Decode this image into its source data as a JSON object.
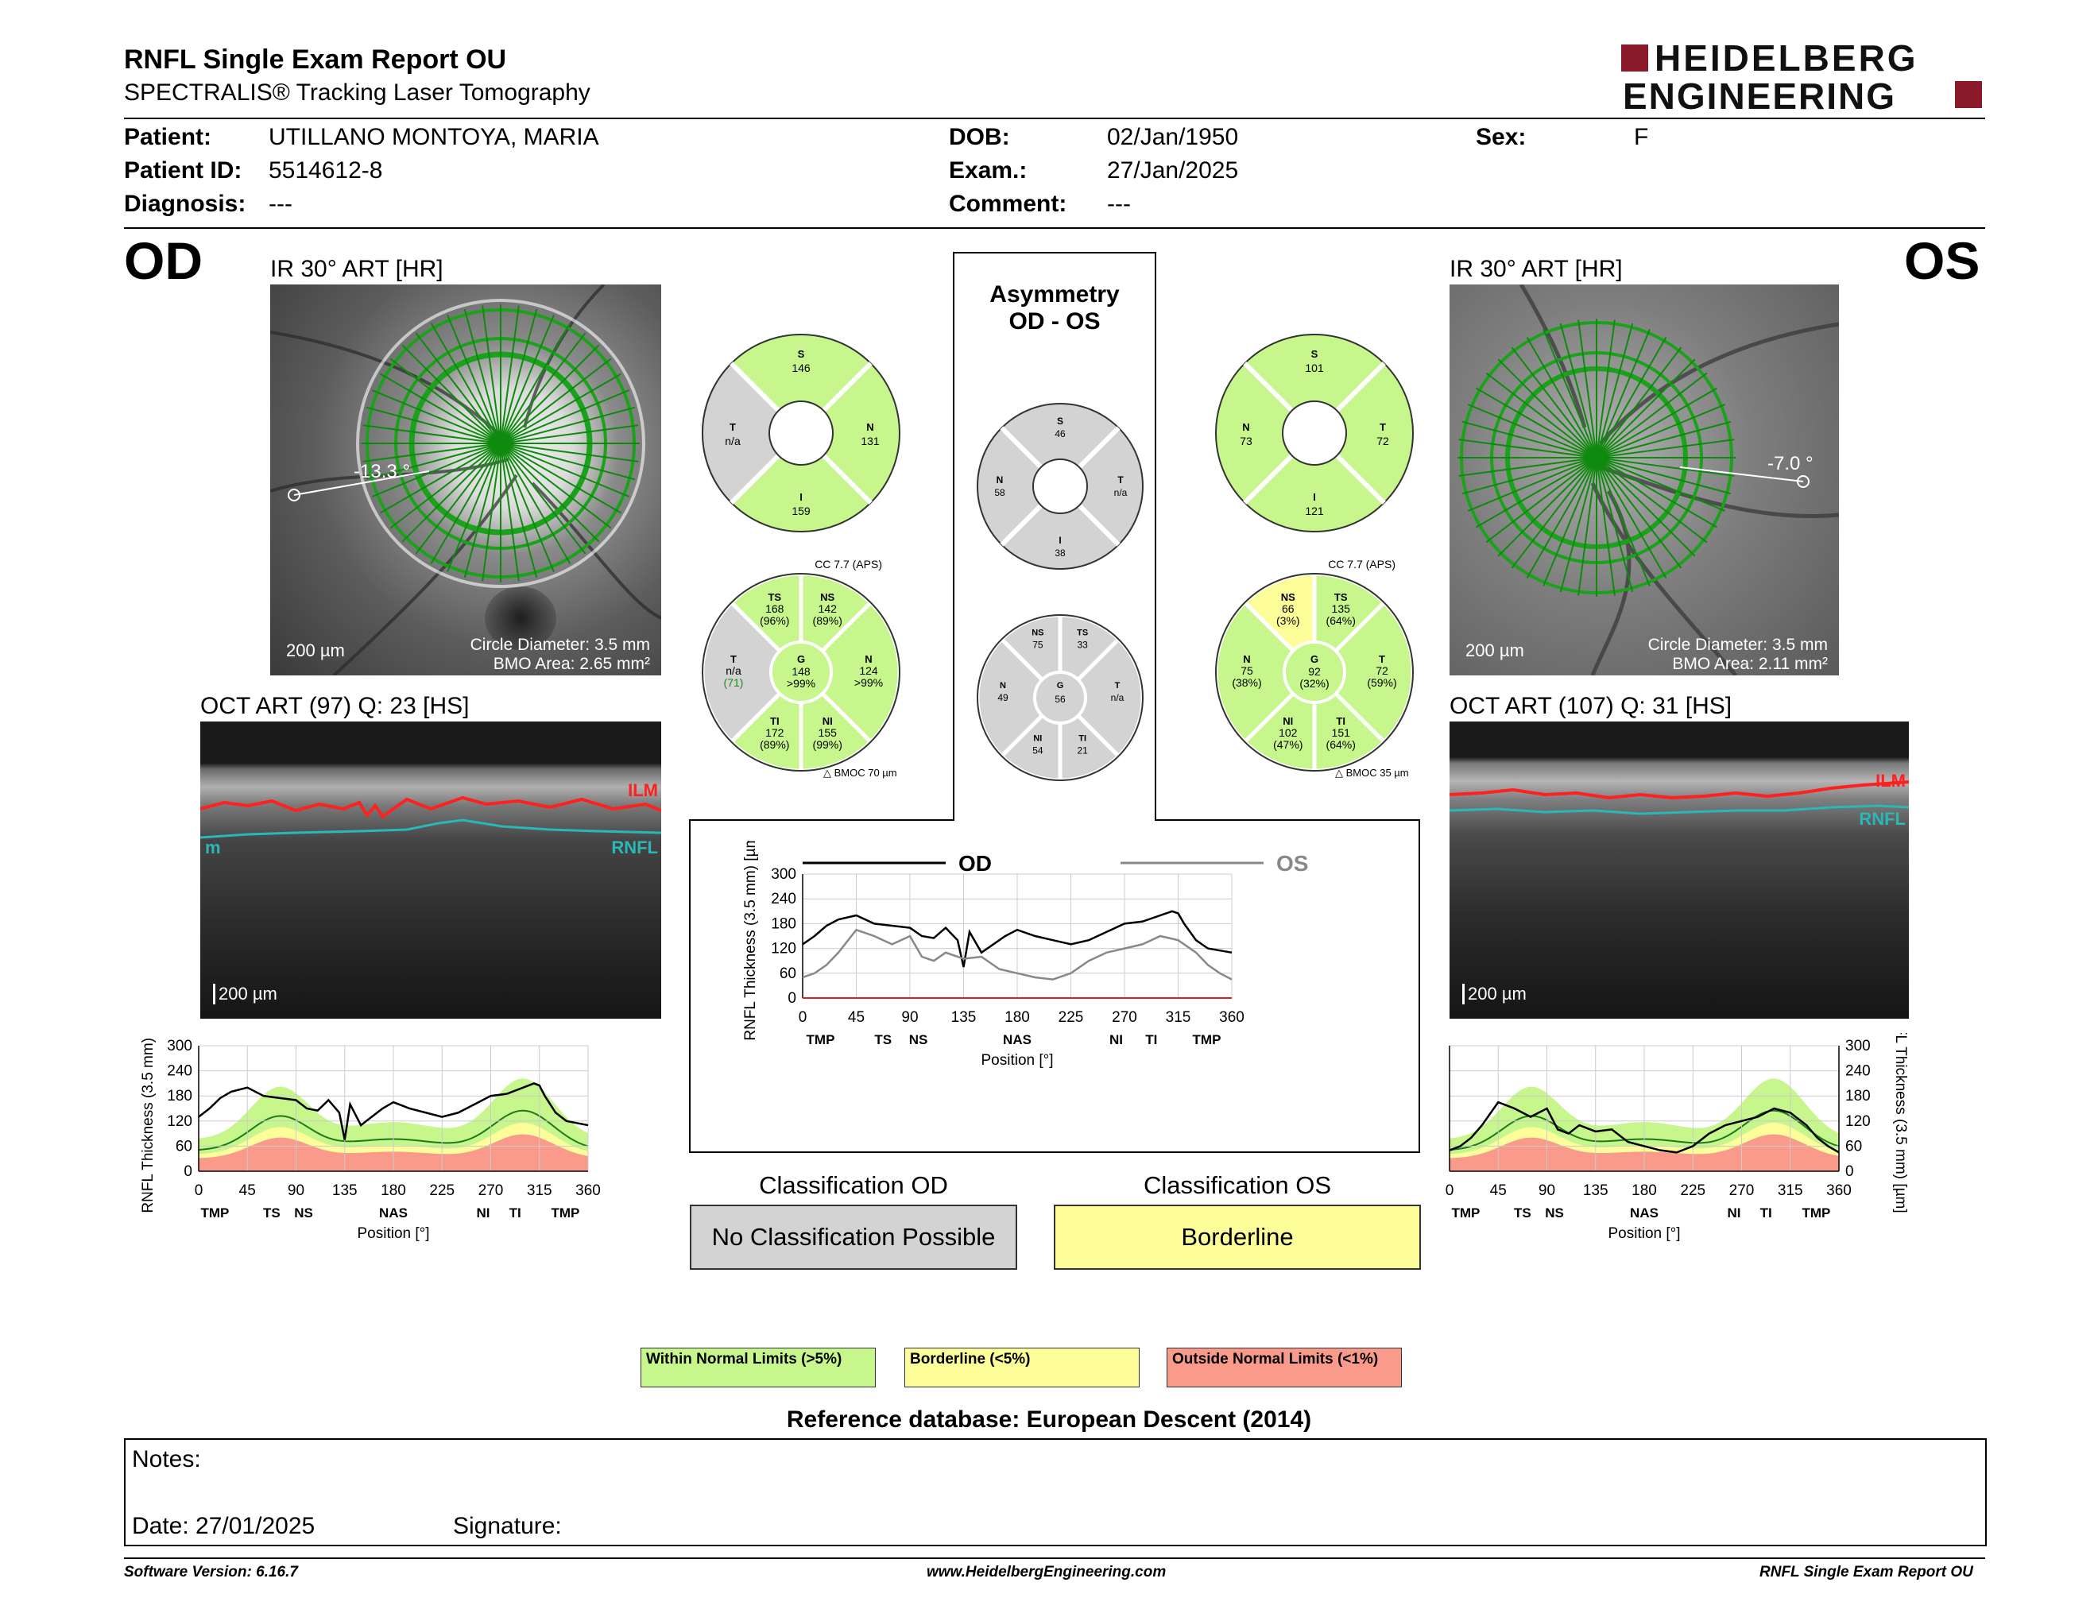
{
  "header": {
    "title": "RNFL Single Exam Report OU",
    "subtitle": "SPECTRALIS® Tracking Laser Tomography",
    "logo_line1": "HEIDELBERG",
    "logo_line2": "ENGINEERING",
    "logo_color": "#8b1a2b"
  },
  "patient": {
    "patient_label": "Patient:",
    "patient_value": "UTILLANO MONTOYA, MARIA",
    "id_label": "Patient ID:",
    "id_value": "5514612-8",
    "diagnosis_label": "Diagnosis:",
    "diagnosis_value": "---",
    "dob_label": "DOB:",
    "dob_value": "02/Jan/1950",
    "exam_label": "Exam.:",
    "exam_value": "27/Jan/2025",
    "comment_label": "Comment:",
    "comment_value": "---",
    "sex_label": "Sex:",
    "sex_value": "F"
  },
  "od": {
    "eye": "OD",
    "ir_title": "IR 30° ART [HR]",
    "angle": "-13.3 °",
    "scale": "200 µm",
    "circle_diameter": "Circle Diameter: 3.5 mm",
    "bmo_area": "BMO Area: 2.65 mm²",
    "oct_title": "OCT ART (97) Q: 23 [HS]",
    "oct_scale": "200 µm",
    "ilm": "ILM",
    "rnfl": "RNFL",
    "rnfl_left": "m",
    "cc": "CC 7.7 (APS)",
    "bmoc": "BMOC 70 µm",
    "sectors4": {
      "S": "146",
      "N": "131",
      "I": "159",
      "T": "n/a"
    },
    "sectors6": {
      "TS": [
        "168",
        "(96%)"
      ],
      "NS": [
        "142",
        "(89%)"
      ],
      "N": [
        "124",
        ">99%"
      ],
      "NI": [
        "155",
        "(99%)"
      ],
      "TI": [
        "172",
        "(89%)"
      ],
      "T": [
        "n/a",
        "(71)"
      ],
      "G": [
        "148",
        ">99%"
      ]
    }
  },
  "os": {
    "eye": "OS",
    "ir_title": "IR 30° ART [HR]",
    "angle": "-7.0 °",
    "scale": "200 µm",
    "circle_diameter": "Circle Diameter: 3.5 mm",
    "bmo_area": "BMO Area: 2.11 mm²",
    "oct_title": "OCT ART (107) Q: 31 [HS]",
    "oct_scale": "200 µm",
    "ilm": "ILM",
    "rnfl": "RNFL",
    "cc": "CC 7.7 (APS)",
    "bmoc": "BMOC 35 µm",
    "sectors4": {
      "S": "101",
      "T": "72",
      "I": "121",
      "N": "73"
    },
    "sectors6": {
      "NS": [
        "66",
        "(3%)"
      ],
      "TS": [
        "135",
        "(64%)"
      ],
      "T": [
        "72",
        "(59%)"
      ],
      "TI": [
        "151",
        "(64%)"
      ],
      "NI": [
        "102",
        "(47%)"
      ],
      "N": [
        "75",
        "(38%)"
      ],
      "G": [
        "92",
        "(32%)"
      ]
    }
  },
  "asymmetry": {
    "title1": "Asymmetry",
    "title2": "OD - OS",
    "sectors4": {
      "S": "46",
      "N": "58",
      "T": "n/a",
      "I": "38"
    },
    "sectors6": {
      "NS": "75",
      "TS": "33",
      "N": "49",
      "G": "56",
      "T": "n/a",
      "NI": "54",
      "TI": "21"
    },
    "legend_od": "OD",
    "legend_os": "OS"
  },
  "axis": {
    "ylabel": "RNFL Thickness (3.5 mm) [µm]",
    "xlabel": "Position [°]",
    "yticks": [
      "0",
      "60",
      "120",
      "180",
      "240",
      "300"
    ],
    "xticks": [
      "0",
      "45",
      "90",
      "135",
      "180",
      "225",
      "270",
      "315",
      "360"
    ],
    "sectors": [
      "TMP",
      "TS",
      "NS",
      "NAS",
      "NI",
      "TI",
      "TMP"
    ]
  },
  "classification": {
    "od_title": "Classification OD",
    "od_value": "No Classification Possible",
    "os_title": "Classification OS",
    "os_value": "Borderline"
  },
  "legend": {
    "wnl": "Within Normal Limits (>5%)",
    "bl": "Borderline (<5%)",
    "onl": "Outside Normal Limits (<1%)"
  },
  "colors": {
    "green": "#c6f68c",
    "yellow": "#fdfd9a",
    "red": "#f99a8a",
    "gray": "#d3d3d3"
  },
  "reference": "Reference database: European Descent (2014)",
  "notes": {
    "notes_label": "Notes:",
    "date_label": "Date: 27/01/2025",
    "signature_label": "Signature:"
  },
  "footer": {
    "version": "Software Version: 6.16.7",
    "url": "www.HeidelbergEngineering.com",
    "report": "RNFL Single Exam Report OU"
  },
  "chart_data": [
    {
      "type": "line",
      "name_ref": "od-thickness",
      "x": [
        0,
        10,
        20,
        30,
        45,
        60,
        75,
        90,
        100,
        110,
        120,
        130,
        135,
        140,
        150,
        160,
        170,
        180,
        195,
        210,
        225,
        240,
        255,
        270,
        285,
        300,
        310,
        315,
        320,
        330,
        340,
        350,
        360
      ],
      "series": [
        {
          "values": [
            130,
            150,
            175,
            190,
            200,
            180,
            175,
            170,
            150,
            145,
            170,
            140,
            75,
            160,
            110,
            130,
            150,
            165,
            150,
            140,
            130,
            140,
            160,
            180,
            185,
            200,
            210,
            205,
            180,
            140,
            120,
            115,
            110
          ]
        }
      ],
      "ylim": [
        0,
        300
      ],
      "xlim": [
        0,
        360
      ]
    },
    {
      "type": "line",
      "name_ref": "os-thickness",
      "x": [
        0,
        10,
        20,
        30,
        45,
        60,
        75,
        90,
        100,
        110,
        120,
        135,
        150,
        165,
        180,
        195,
        210,
        225,
        240,
        255,
        270,
        285,
        300,
        315,
        330,
        340,
        350,
        360
      ],
      "series": [
        {
          "values": [
            50,
            60,
            80,
            110,
            165,
            150,
            130,
            150,
            100,
            90,
            110,
            95,
            100,
            70,
            60,
            50,
            45,
            60,
            90,
            110,
            120,
            130,
            150,
            140,
            110,
            80,
            60,
            45
          ]
        }
      ],
      "ylim": [
        0,
        300
      ],
      "xlim": [
        0,
        360
      ]
    }
  ]
}
